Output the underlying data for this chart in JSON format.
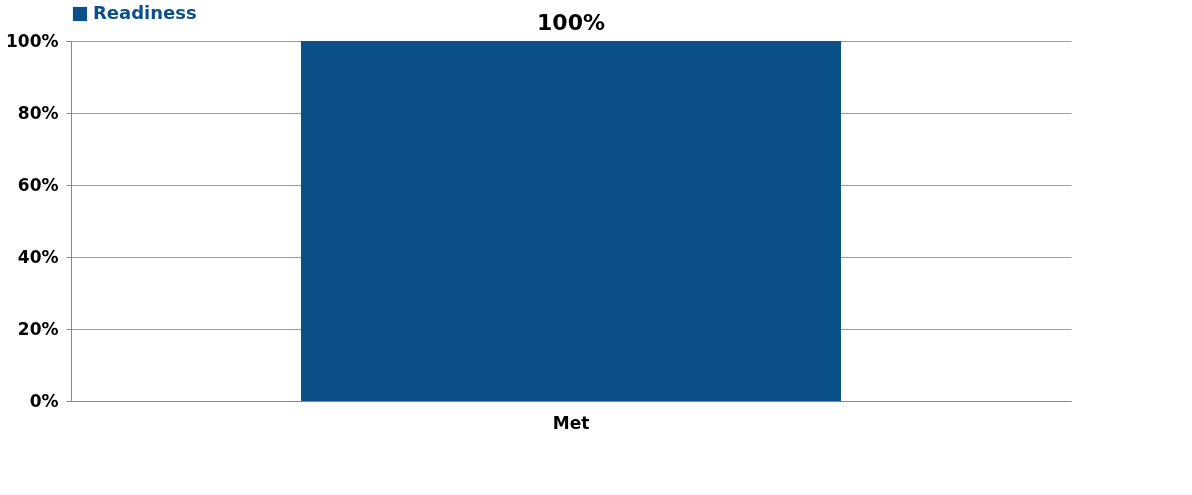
{
  "chart_data": {
    "type": "bar",
    "categories": [
      "Met"
    ],
    "series": [
      {
        "name": "Readiness",
        "color": "#0b5089",
        "values": [
          100
        ]
      }
    ],
    "value_labels": [
      "100%"
    ],
    "ylim": [
      0,
      100
    ],
    "yticks": [
      {
        "value": 0,
        "label": "0%"
      },
      {
        "value": 20,
        "label": "20%"
      },
      {
        "value": 40,
        "label": "40%"
      },
      {
        "value": 60,
        "label": "60%"
      },
      {
        "value": 80,
        "label": "80%"
      },
      {
        "value": 100,
        "label": "100%"
      }
    ],
    "grid": "y",
    "legend": "top"
  }
}
